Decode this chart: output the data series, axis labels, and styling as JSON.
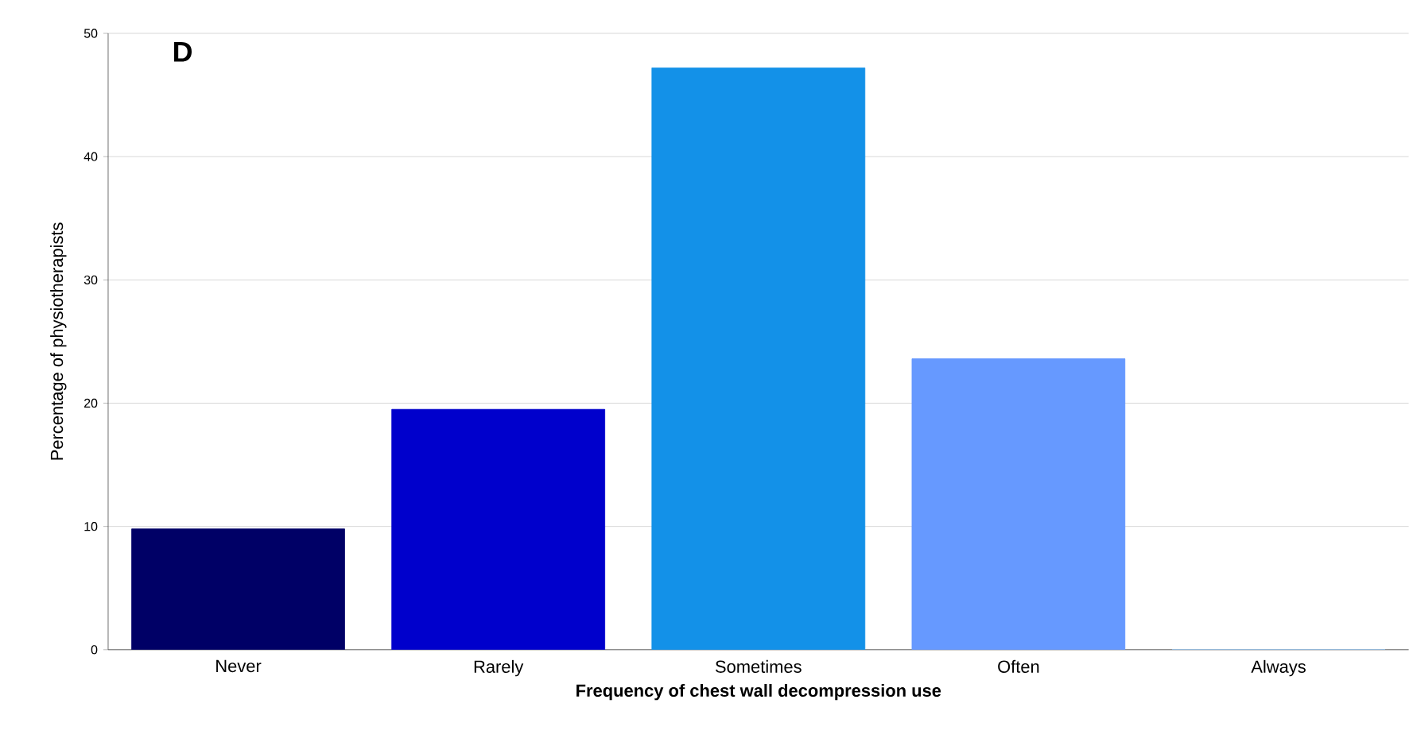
{
  "chart_data": {
    "type": "bar",
    "annotations": [
      "D"
    ],
    "xlabel": "Frequency of chest wall decompression use",
    "ylabel": "Percentage of physiotherapists",
    "categories": [
      "Never",
      "Rarely",
      "Sometimes",
      "Often",
      "Always"
    ],
    "values": [
      9.8,
      19.5,
      47.2,
      23.6,
      0
    ],
    "colors": [
      "#000066",
      "#0000cc",
      "#1391e8",
      "#6699ff",
      "#99ccff"
    ],
    "ylim": [
      0,
      50
    ],
    "yticks": [
      0,
      10,
      20,
      30,
      40,
      50
    ],
    "grid": "y"
  }
}
